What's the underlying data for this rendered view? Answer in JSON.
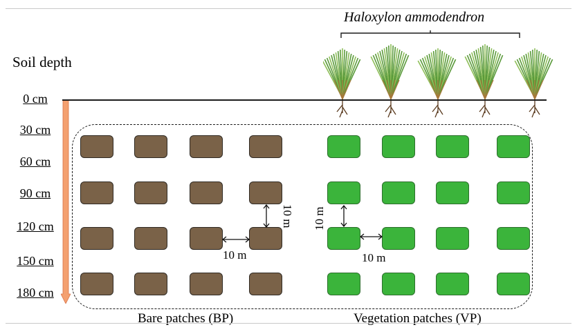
{
  "diagram": {
    "species_label": "Haloxylon ammodendron",
    "soil_depth_label": "Soil depth",
    "depths": [
      "0 cm",
      "30 cm",
      "60 cm",
      "90 cm",
      "120 cm",
      "150 cm",
      "180 cm"
    ],
    "bare_label": "Bare patches (BP)",
    "veg_label": "Vegetation patches (VP)",
    "spacing_labels": {
      "bp_vertical": "10 m",
      "bp_horizontal": "10 m",
      "vp_vertical": "10 m",
      "vp_horizontal": "10 m"
    },
    "grid": {
      "rows": 4,
      "columns_per_group": 4,
      "plant_count": 5
    },
    "colors": {
      "bare_patch": "#7a6248",
      "veg_patch": "#3bb43b",
      "depth_arrow": "#f4a070",
      "plant": "#5a9a3a"
    }
  }
}
